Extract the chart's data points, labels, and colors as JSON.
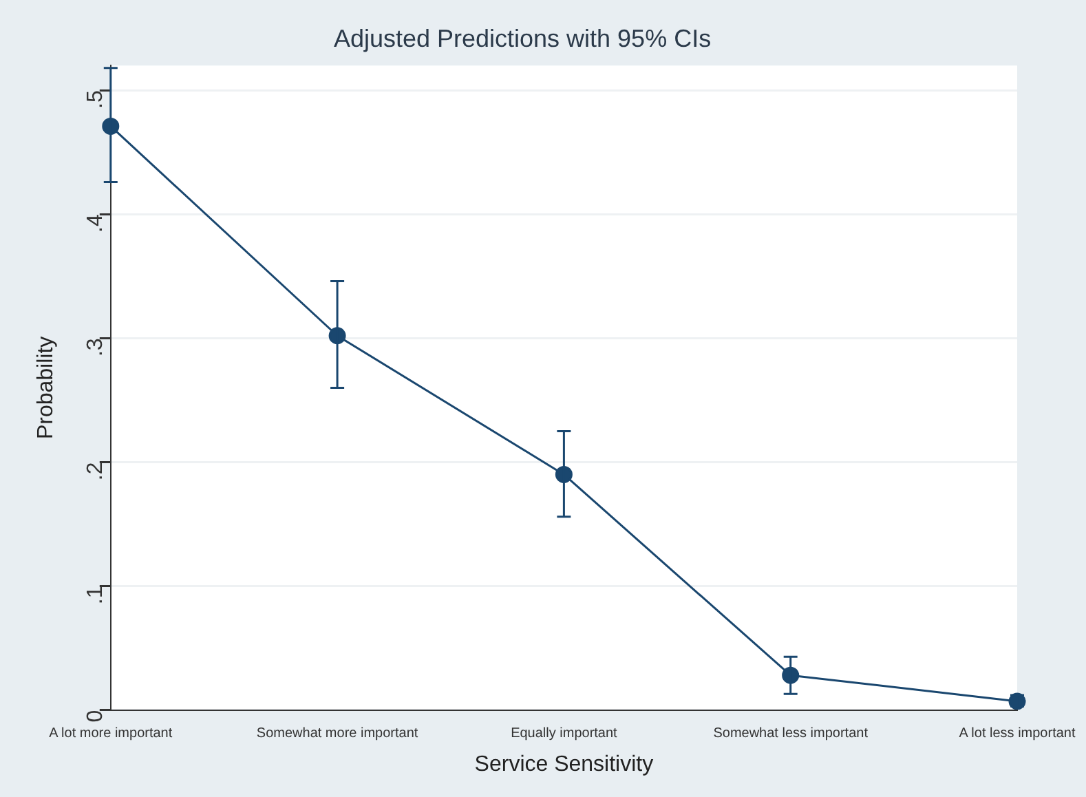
{
  "chart_data": {
    "type": "line",
    "title": "Adjusted Predictions with 95% CIs",
    "xlabel": "Service Sensitivity",
    "ylabel": "Probability",
    "categories": [
      "A lot more important",
      "Somewhat more important",
      "Equally important",
      "Somewhat less important",
      "A lot less important"
    ],
    "series": [
      {
        "color": "#1a476f",
        "values": [
          0.471,
          0.302,
          0.19,
          0.028,
          0.007
        ],
        "errors": [
          [
            0.426,
            0.518
          ],
          [
            0.26,
            0.346
          ],
          [
            0.156,
            0.225
          ],
          [
            0.013,
            0.043
          ],
          [
            0.003,
            0.012
          ]
        ]
      }
    ],
    "ylim": [
      0,
      0.52
    ],
    "yticks": [
      0,
      {
        "value": 0.1,
        "label": ".1"
      },
      {
        "value": 0.2,
        "label": ".2"
      },
      {
        "value": 0.3,
        "label": ".3"
      },
      {
        "value": 0.4,
        "label": ".4"
      },
      {
        "value": 0.5,
        "label": ".5"
      }
    ],
    "grid": "y",
    "legend": false,
    "marker": "circle",
    "line_style": "solid"
  }
}
